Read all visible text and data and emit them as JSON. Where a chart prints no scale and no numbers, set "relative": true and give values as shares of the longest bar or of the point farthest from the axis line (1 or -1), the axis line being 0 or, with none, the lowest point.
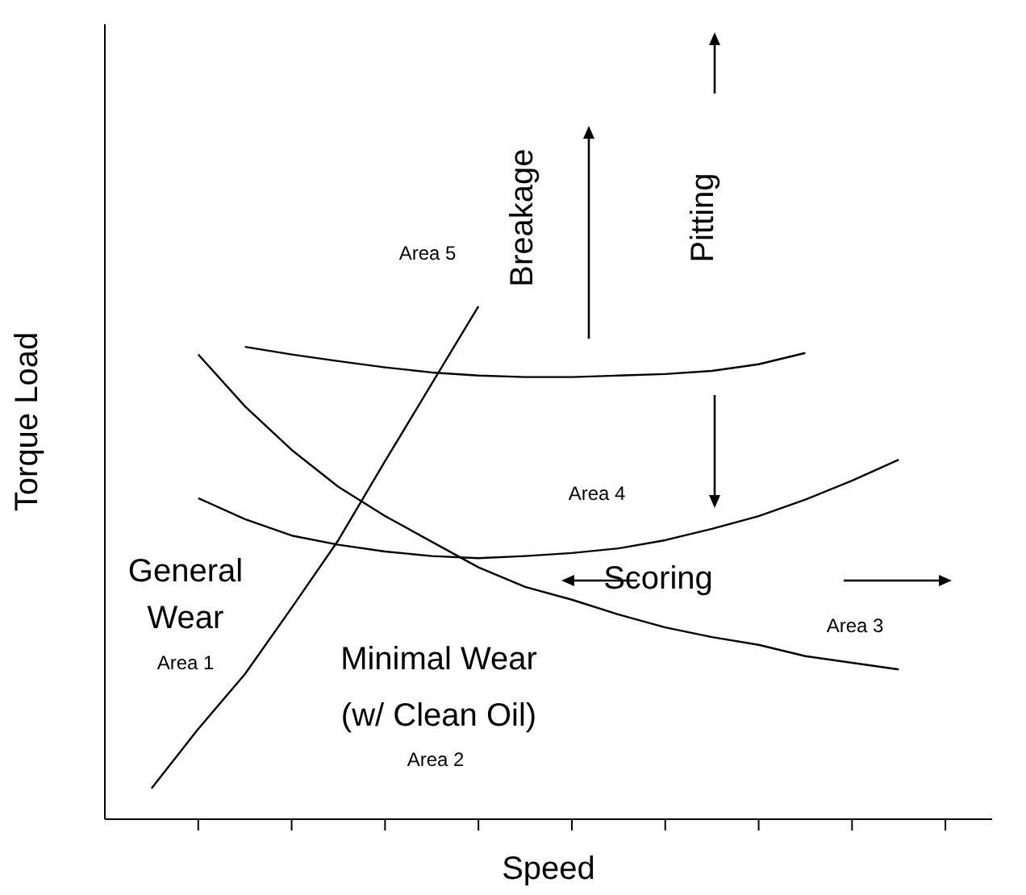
{
  "chart_data": {
    "type": "line",
    "relative": true,
    "xlabel": "Speed",
    "ylabel": "Torque Load",
    "marker": "none",
    "line_style": "solid",
    "categories": [
      null,
      null,
      null,
      null,
      null,
      null,
      null,
      null,
      null,
      null,
      null,
      null,
      null,
      null,
      null,
      null,
      null,
      null
    ],
    "series": [
      {
        "color": "#000000",
        "values": [
          0.06,
          0.176,
          0.283,
          0.412,
          0.544,
          0.698,
          0.849,
          1.0,
          null,
          null,
          null,
          null,
          null,
          null,
          null,
          null,
          null,
          null
        ]
      },
      {
        "color": "#000000",
        "values": [
          null,
          0.906,
          0.805,
          0.72,
          0.648,
          0.591,
          0.541,
          0.491,
          0.453,
          0.428,
          0.399,
          0.374,
          0.355,
          0.34,
          0.318,
          0.305,
          0.292,
          null
        ]
      },
      {
        "color": "#000000",
        "values": [
          null,
          0.626,
          0.585,
          0.553,
          0.535,
          0.522,
          0.513,
          0.509,
          0.513,
          0.519,
          0.528,
          0.544,
          0.566,
          0.591,
          0.623,
          0.66,
          0.701,
          null
        ]
      },
      {
        "color": "#000000",
        "values": [
          null,
          null,
          0.921,
          0.906,
          0.893,
          0.881,
          0.871,
          0.865,
          0.862,
          0.862,
          0.865,
          0.868,
          0.874,
          0.887,
          0.909,
          null,
          null,
          null
        ]
      }
    ],
    "annotations": [
      "Breakage",
      "Pitting",
      "Scoring",
      "General Wear",
      "Area 1",
      "Minimal Wear",
      "(w/ Clean Oil)",
      "Area 2",
      "Area 3",
      "Area 4",
      "Area 5"
    ]
  }
}
